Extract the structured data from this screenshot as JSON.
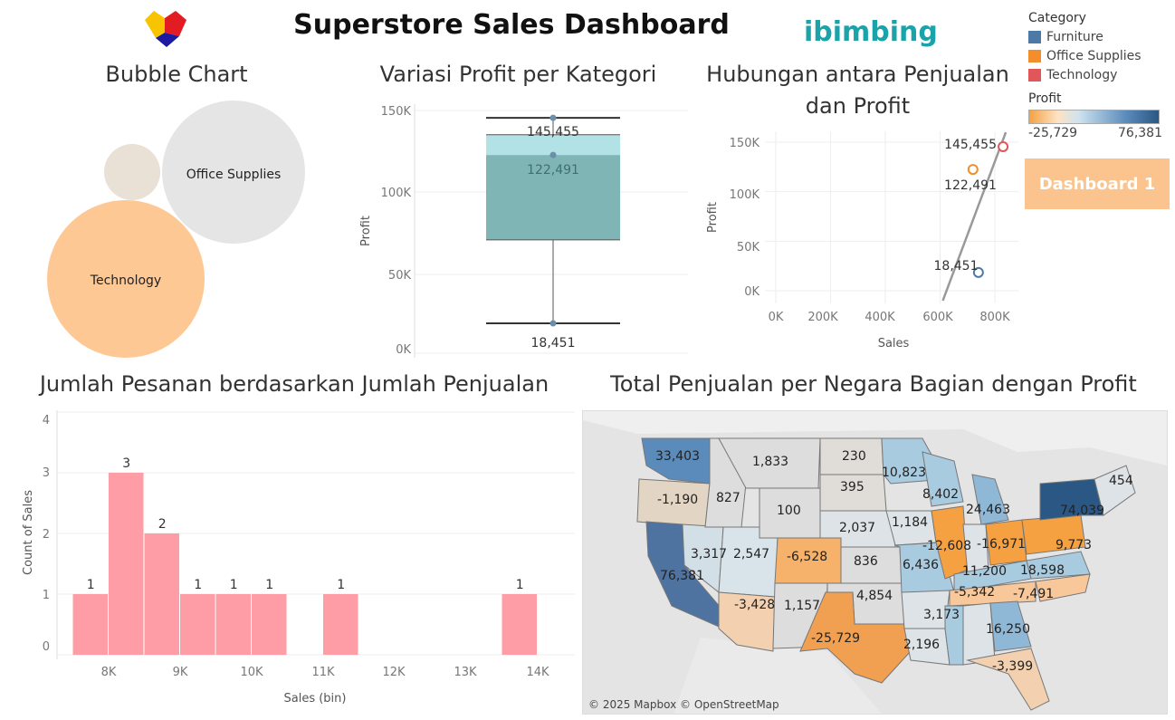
{
  "header": {
    "title": "Superstore Sales Dashboard",
    "logo_text": "ibimbing"
  },
  "legend": {
    "category_title": "Category",
    "categories": [
      {
        "label": "Furniture",
        "color": "#4e79a7"
      },
      {
        "label": "Office Supplies",
        "color": "#f28e2b"
      },
      {
        "label": "Technology",
        "color": "#e15759"
      }
    ],
    "profit_title": "Profit",
    "profit_min": "-25,729",
    "profit_max": "76,381"
  },
  "dashboard_button": "Dashboard 1",
  "bubble": {
    "title": "Bubble Chart",
    "labels": {
      "office": "Office Supplies",
      "technology": "Technology"
    }
  },
  "boxplot": {
    "title": "Variasi Profit per Kategori",
    "ylabel": "Profit",
    "yticks": [
      "150K",
      "100K",
      "50K",
      "0K"
    ],
    "labels": [
      "145,455",
      "122,491",
      "18,451"
    ]
  },
  "scatter": {
    "title_line1": "Hubungan antara Penjualan",
    "title_line2": "dan Profit",
    "xlabel": "Sales",
    "ylabel": "Profit",
    "xticks": [
      "0K",
      "200K",
      "400K",
      "600K",
      "800K"
    ],
    "yticks": [
      "150K",
      "100K",
      "50K",
      "0K"
    ],
    "labels": [
      "145,455",
      "122,491",
      "18,451"
    ]
  },
  "histogram": {
    "title": "Jumlah Pesanan berdasarkan Jumlah Penjualan",
    "xlabel": "Sales (bin)",
    "ylabel": "Count of Sales",
    "xticks": [
      "8K",
      "9K",
      "10K",
      "11K",
      "12K",
      "13K",
      "14K"
    ],
    "yticks": [
      "4",
      "3",
      "2",
      "1",
      "0"
    ]
  },
  "map": {
    "title": "Total Penjualan per Negara Bagian dengan Profit",
    "attribution": "© 2025 Mapbox © OpenStreetMap",
    "state_values": [
      "33,403",
      "1,833",
      "230",
      "10,823",
      "-1,190",
      "827",
      "395",
      "8,402",
      "454",
      "100",
      "1,184",
      "24,463",
      "74,039",
      "2,037",
      "3,317",
      "2,547",
      "-6,528",
      "-12,608",
      "-16,971",
      "9,773",
      "76,381",
      "836",
      "6,436",
      "11,200",
      "18,598",
      "4,854",
      "-5,342",
      "-7,491",
      "-3,428",
      "1,157",
      "3,173",
      "16,250",
      "-25,729",
      "2,196",
      "-3,399"
    ]
  },
  "chart_data": [
    {
      "type": "bubble",
      "title": "Bubble Chart",
      "categories": [
        "Technology",
        "Office Supplies",
        "Furniture"
      ]
    },
    {
      "type": "box",
      "title": "Variasi Profit per Kategori",
      "ylabel": "Profit",
      "ylim": [
        0,
        150000
      ],
      "values": [
        145455,
        122491,
        18451
      ]
    },
    {
      "type": "scatter",
      "title": "Hubungan antara Penjualan dan Profit",
      "xlabel": "Sales",
      "ylabel": "Profit",
      "xlim": [
        0,
        850000
      ],
      "ylim": [
        0,
        155000
      ],
      "points": [
        {
          "category": "Technology",
          "x": 830000,
          "y": 145455
        },
        {
          "category": "Office Supplies",
          "x": 720000,
          "y": 122491
        },
        {
          "category": "Furniture",
          "x": 740000,
          "y": 18451
        }
      ],
      "trend_line": [
        [
          610000,
          -10000
        ],
        [
          840000,
          160000
        ]
      ]
    },
    {
      "type": "bar",
      "title": "Jumlah Pesanan berdasarkan Jumlah Penjualan",
      "xlabel": "Sales (bin)",
      "ylabel": "Count of Sales",
      "ylim": [
        0,
        4
      ],
      "bins": [
        {
          "start": 7500,
          "end": 8000,
          "count": 1
        },
        {
          "start": 8000,
          "end": 8500,
          "count": 3
        },
        {
          "start": 8500,
          "end": 9000,
          "count": 2
        },
        {
          "start": 9000,
          "end": 9500,
          "count": 1
        },
        {
          "start": 9500,
          "end": 10000,
          "count": 1
        },
        {
          "start": 10000,
          "end": 10500,
          "count": 1
        },
        {
          "start": 11000,
          "end": 11500,
          "count": 1
        },
        {
          "start": 13500,
          "end": 14000,
          "count": 1
        }
      ]
    }
  ]
}
